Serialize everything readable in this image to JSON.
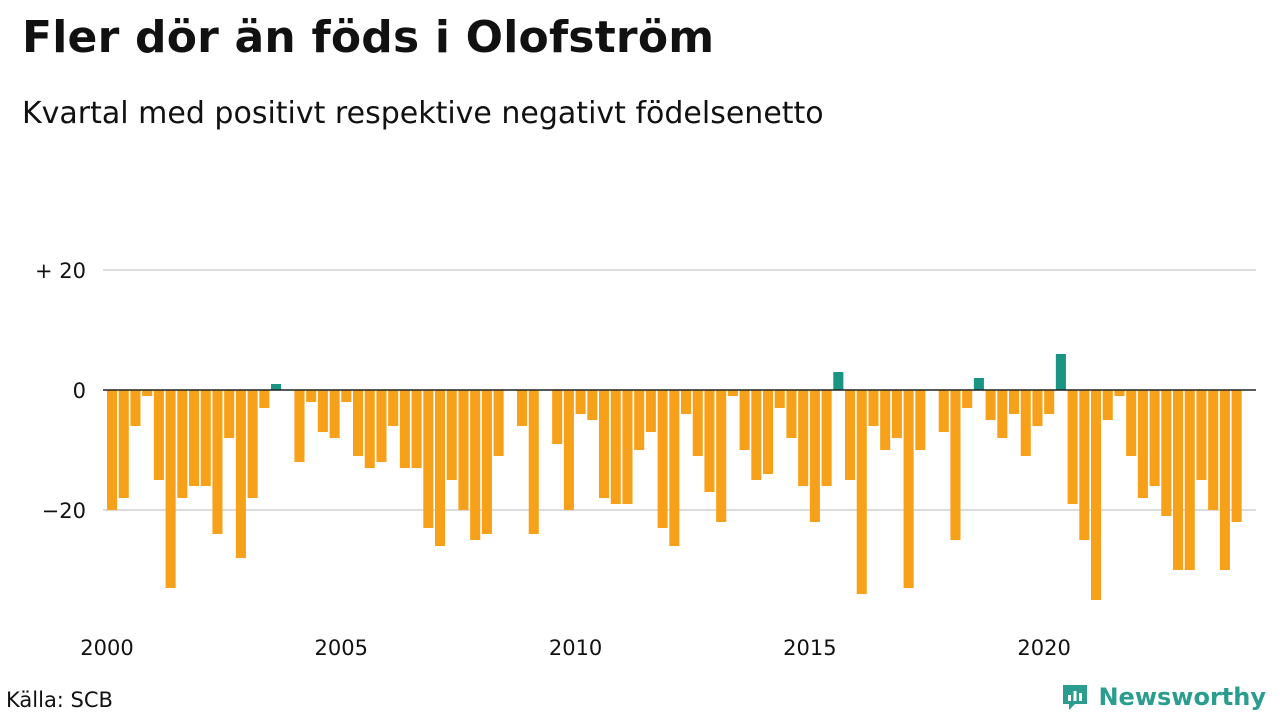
{
  "header": {
    "title": "Fler dör än föds i Olofström",
    "subtitle": "Kvartal med positivt respektive negativt födelsenetto"
  },
  "footer": {
    "source": "Källa: SCB",
    "brand": "Newsworthy"
  },
  "colors": {
    "negative": "#f7a11a",
    "positive": "#1a9483",
    "grid": "#dcdcdc",
    "axis": "#222222",
    "brand": "#2a9d8f"
  },
  "chart_data": {
    "type": "bar",
    "title": "Fler dör än föds i Olofström",
    "subtitle": "Kvartal med positivt respektive negativt födelsenetto",
    "xlabel": "",
    "ylabel": "",
    "x_start": 2000,
    "x_end": 2024.5,
    "periods_per_year": 4,
    "ylim": [
      -37,
      37
    ],
    "grid": true,
    "y_ticks": [
      {
        "value": 20,
        "label": "+ 20"
      },
      {
        "value": 0,
        "label": "0"
      },
      {
        "value": -20,
        "label": "−20"
      }
    ],
    "x_ticks": [
      {
        "value": 2000,
        "label": "2000"
      },
      {
        "value": 2005,
        "label": "2005"
      },
      {
        "value": 2010,
        "label": "2010"
      },
      {
        "value": 2015,
        "label": "2015"
      },
      {
        "value": 2020,
        "label": "2020"
      }
    ],
    "values": [
      -20,
      -18,
      -6,
      -1,
      -15,
      -33,
      -18,
      -16,
      -16,
      -24,
      -8,
      -28,
      -18,
      -3,
      1,
      0,
      -12,
      -2,
      -7,
      -8,
      -2,
      -11,
      -13,
      -12,
      -6,
      -13,
      -13,
      -23,
      -26,
      -15,
      -20,
      -25,
      -24,
      -11,
      0,
      -6,
      -24,
      0,
      -9,
      -20,
      -4,
      -5,
      -18,
      -19,
      -19,
      -10,
      -7,
      -23,
      -26,
      -4,
      -11,
      -17,
      -22,
      -1,
      -10,
      -15,
      -14,
      -3,
      -8,
      -16,
      -22,
      -16,
      3,
      -15,
      -34,
      -6,
      -10,
      -8,
      -33,
      -10,
      0,
      -7,
      -25,
      -3,
      2,
      -5,
      -8,
      -4,
      -11,
      -6,
      -4,
      6,
      -19,
      -25,
      -35,
      -5,
      -1,
      -11,
      -18,
      -16,
      -21,
      -30,
      -30,
      -15,
      -20,
      -30,
      -22
    ]
  }
}
